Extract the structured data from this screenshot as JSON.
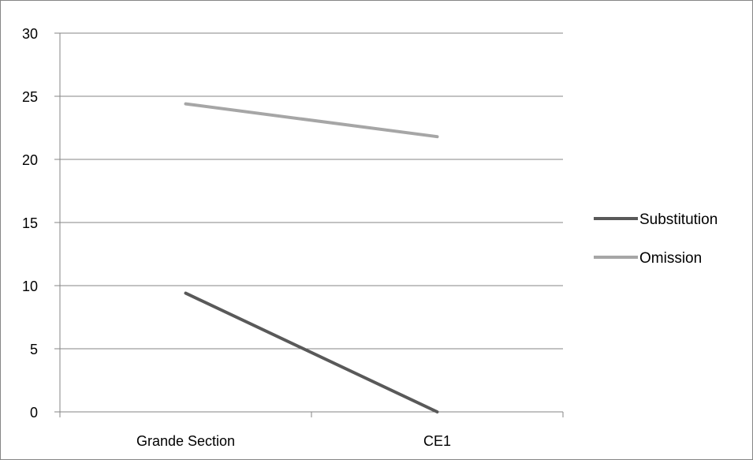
{
  "chart_data": {
    "type": "line",
    "categories": [
      "Grande Section",
      "CE1"
    ],
    "series": [
      {
        "name": "Substitution",
        "values": [
          9.4,
          0
        ],
        "color": "#595959"
      },
      {
        "name": "Omission",
        "values": [
          24.4,
          21.8
        ],
        "color": "#a6a6a6"
      }
    ],
    "ylim": [
      0,
      30
    ],
    "yticks": [
      0,
      5,
      10,
      15,
      20,
      25,
      30
    ],
    "grid": true,
    "legend_position": "right",
    "gridline_color": "#868686",
    "axis_color": "#868686"
  }
}
